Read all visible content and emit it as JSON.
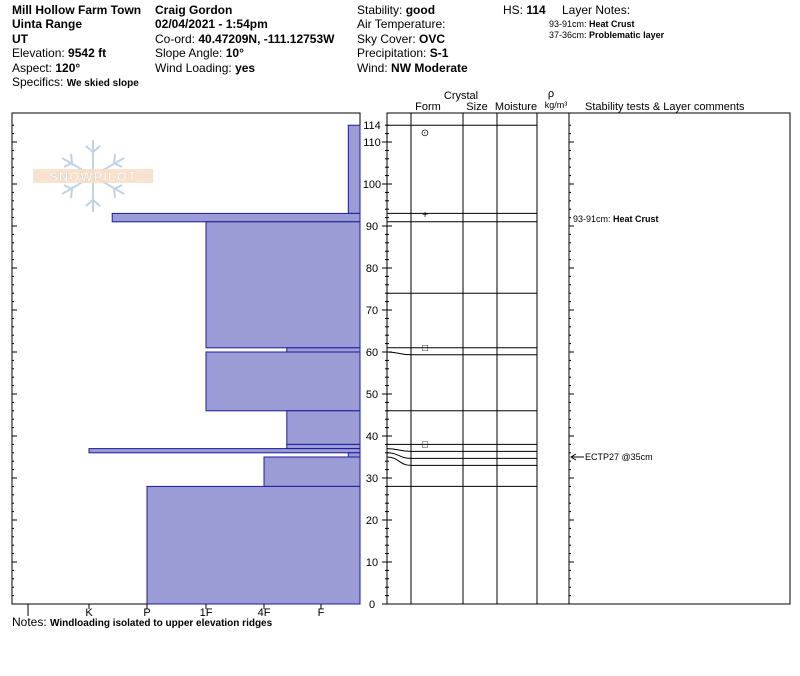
{
  "header": {
    "location": "Mill Hollow Farm Town",
    "range": "Uinta Range",
    "state": "UT",
    "elevation_label": "Elevation:",
    "elevation_value": "9542 ft",
    "aspect_label": "Aspect:",
    "aspect_value": "120°",
    "specifics_label": "Specifics:",
    "specifics_value": "We skied slope",
    "observer": "Craig Gordon",
    "datetime": "02/04/2021 - 1:54pm",
    "coord_label": "Co-ord:",
    "coord_value": "40.47209N, -111.12753W",
    "slope_label": "Slope Angle:",
    "slope_value": "10°",
    "wind_loading_label": "Wind Loading:",
    "wind_loading_value": "yes",
    "stability_label": "Stability:",
    "stability_value": "good",
    "air_temp_label": "Air Temperature:",
    "air_temp_value": "",
    "sky_label": "Sky Cover:",
    "sky_value": "OVC",
    "precip_label": "Precipitation:",
    "precip_value": "S-1",
    "wind_label": "Wind:",
    "wind_value": "NW Moderate",
    "hs_label": "HS:",
    "hs_value": "114",
    "layer_notes_label": "Layer Notes:",
    "layer_notes": [
      {
        "range": "93-91cm:",
        "text": "Heat Crust"
      },
      {
        "range": "37-36cm:",
        "text": "Problematic layer"
      }
    ]
  },
  "logo_text": "SNOWPILOT",
  "notes_label": "Notes:",
  "notes_value": "Windloading isolated to upper elevation ridges",
  "columns": {
    "crystal": "Crystal",
    "form": "Form",
    "size": "Size",
    "moisture": "Moisture",
    "rho": "ρ",
    "density": "kg/m³",
    "stability": "Stability tests & Layer comments"
  },
  "colors": {
    "hardness_fill": "#9b9bd6",
    "hardness_stroke": "#1c1c9c"
  },
  "chart_data": {
    "type": "bar",
    "orientation": "horizontal",
    "title": "",
    "ylabel": "",
    "xlabel": "",
    "ylim": [
      0,
      114
    ],
    "y_ticks": [
      0,
      10,
      20,
      30,
      40,
      50,
      60,
      70,
      80,
      90,
      100,
      110,
      114
    ],
    "hardness_scale": [
      "I",
      "K",
      "P",
      "1F",
      "4F",
      "F"
    ],
    "layers": [
      {
        "bottom": 93,
        "top": 114,
        "hardness_index": 6.7
      },
      {
        "bottom": 91,
        "top": 93,
        "hardness_index": 2.4
      },
      {
        "bottom": 61,
        "top": 91,
        "hardness_index": 4.0
      },
      {
        "bottom": 60,
        "top": 61,
        "hardness_index": 5.4
      },
      {
        "bottom": 46,
        "top": 60,
        "hardness_index": 4.0
      },
      {
        "bottom": 38,
        "top": 46,
        "hardness_index": 5.4
      },
      {
        "bottom": 37,
        "top": 38,
        "hardness_index": 5.4
      },
      {
        "bottom": 36,
        "top": 37,
        "hardness_index": 2.0
      },
      {
        "bottom": 35,
        "top": 36,
        "hardness_index": 6.7
      },
      {
        "bottom": 28,
        "top": 35,
        "hardness_index": 5.0
      },
      {
        "bottom": 0,
        "top": 28,
        "hardness_index": 3.0
      }
    ],
    "layer_boundaries": [
      114,
      93,
      91,
      74,
      61,
      60,
      46,
      38,
      37,
      36,
      35,
      28
    ],
    "grain_forms": [
      {
        "height": 114,
        "symbol": "⊙"
      },
      {
        "height": 91,
        "symbol": "+"
      },
      {
        "height": 60,
        "symbol": "□"
      },
      {
        "height": 37,
        "symbol": "□"
      }
    ],
    "comments": [
      {
        "height": 91,
        "text": "93-91cm:",
        "bold_text": "Heat Crust"
      }
    ],
    "stability_tests": [
      {
        "height": 35,
        "text": "ECTP27 @35cm"
      }
    ]
  }
}
